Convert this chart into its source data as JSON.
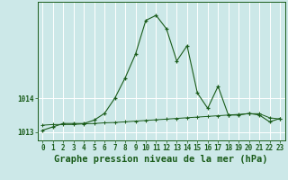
{
  "title": "Graphe pression niveau de la mer (hPa)",
  "bg_color": "#cce8e8",
  "grid_color": "#ffffff",
  "line_color": "#1a5c1a",
  "x_labels": [
    "0",
    "1",
    "2",
    "3",
    "4",
    "5",
    "6",
    "7",
    "8",
    "9",
    "10",
    "11",
    "12",
    "13",
    "14",
    "15",
    "16",
    "17",
    "18",
    "19",
    "20",
    "21",
    "22",
    "23"
  ],
  "pressure_line": [
    1013.05,
    1013.15,
    1013.25,
    1013.25,
    1013.25,
    1013.35,
    1013.55,
    1014.0,
    1014.6,
    1015.3,
    1016.3,
    1016.45,
    1016.05,
    1015.1,
    1015.55,
    1014.15,
    1013.7,
    1014.35,
    1013.5,
    1013.5,
    1013.55,
    1013.5,
    1013.3,
    1013.4
  ],
  "flat_line": [
    1013.2,
    1013.22,
    1013.22,
    1013.22,
    1013.24,
    1013.25,
    1013.27,
    1013.28,
    1013.3,
    1013.32,
    1013.34,
    1013.36,
    1013.38,
    1013.4,
    1013.42,
    1013.44,
    1013.46,
    1013.48,
    1013.5,
    1013.52,
    1013.54,
    1013.54,
    1013.42,
    1013.38
  ],
  "ylim_min": 1012.75,
  "ylim_max": 1016.85,
  "yticks": [
    1013,
    1014
  ],
  "title_fontsize": 7.5,
  "tick_fontsize": 5.5,
  "figwidth": 3.2,
  "figheight": 2.0,
  "dpi": 100
}
